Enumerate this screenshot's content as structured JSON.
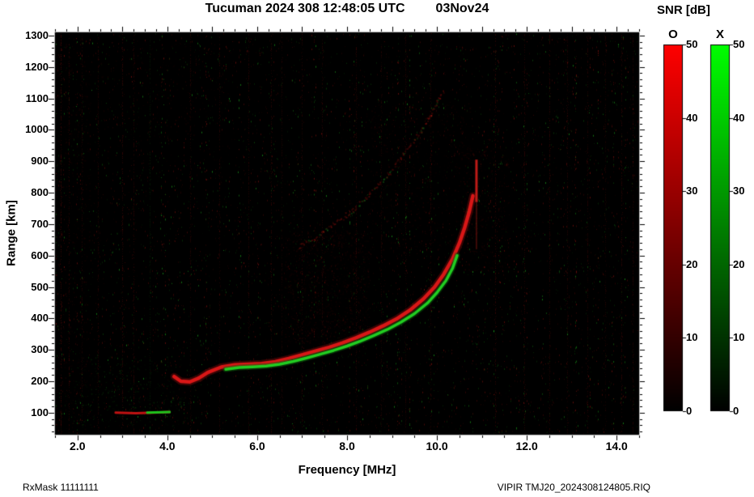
{
  "header": {
    "title": "Tucuman 2024 308 12:48:05 UTC",
    "date": "03Nov24"
  },
  "axes": {
    "x_label": "Frequency [MHz]",
    "y_label": "Range [km]",
    "x_ticks": [
      2,
      4,
      6,
      8,
      10,
      12,
      14
    ],
    "x_tick_labels": [
      "2.0",
      "4.0",
      "6.0",
      "8.0",
      "10.0",
      "12.0",
      "14.0"
    ],
    "y_ticks": [
      1300,
      1200,
      1100,
      1000,
      900,
      800,
      700,
      600,
      500,
      400,
      300,
      200,
      100
    ],
    "y_tick_labels": [
      "1300",
      "1200",
      "1100",
      "1000",
      "900",
      "800",
      "700",
      "600",
      "500",
      "400",
      "300",
      "200",
      "100"
    ]
  },
  "colorbar": {
    "title": "SNR [dB]",
    "bars": [
      {
        "label": "O",
        "color": "#ff0000"
      },
      {
        "label": "X",
        "color": "#00ff00"
      }
    ],
    "tick_values": [
      50,
      40,
      30,
      20,
      10,
      0
    ],
    "ticks": [
      "50",
      "40",
      "30",
      "20",
      "10",
      "0"
    ]
  },
  "footer": {
    "left": "RxMask 11111111",
    "right": "VIPIR  TMJ20_2024308124805.RIQ"
  },
  "chart_data": {
    "type": "heatmap",
    "description": "VIPIR ionogram: echo SNR versus sounding frequency and virtual range. O-mode echoes red, X-mode echoes green, on black background with RFI noise.",
    "station": "Tucuman",
    "xlim": [
      1.5,
      14.5
    ],
    "ylim": [
      30,
      1310
    ],
    "snr_range": [
      0,
      50
    ],
    "noise": {
      "red_fraction": 0.62
    },
    "traces": {
      "e_layer_o": {
        "mode": "O",
        "color": "#c01212",
        "points": [
          [
            2.85,
            100
          ],
          [
            3.3,
            98
          ],
          [
            3.7,
            100
          ],
          [
            4.05,
            102
          ]
        ]
      },
      "e_layer_x": {
        "mode": "X",
        "color": "#1dc41d",
        "points": [
          [
            3.55,
            100
          ],
          [
            4.05,
            102
          ]
        ]
      },
      "f_layer_o": {
        "mode": "O",
        "color": "#d81717",
        "points": [
          [
            4.15,
            215
          ],
          [
            4.3,
            200
          ],
          [
            4.5,
            198
          ],
          [
            4.7,
            210
          ],
          [
            4.9,
            228
          ],
          [
            5.2,
            245
          ],
          [
            5.5,
            252
          ],
          [
            5.8,
            254
          ],
          [
            6.1,
            256
          ],
          [
            6.4,
            262
          ],
          [
            6.7,
            272
          ],
          [
            7.0,
            284
          ],
          [
            7.3,
            296
          ],
          [
            7.6,
            308
          ],
          [
            7.9,
            322
          ],
          [
            8.2,
            338
          ],
          [
            8.5,
            356
          ],
          [
            8.8,
            376
          ],
          [
            9.1,
            398
          ],
          [
            9.4,
            426
          ],
          [
            9.7,
            462
          ],
          [
            9.95,
            500
          ],
          [
            10.15,
            540
          ],
          [
            10.35,
            590
          ],
          [
            10.5,
            640
          ],
          [
            10.62,
            690
          ],
          [
            10.72,
            740
          ],
          [
            10.8,
            790
          ]
        ]
      },
      "f_layer_x": {
        "mode": "X",
        "color": "#22cc22",
        "points": [
          [
            5.3,
            238
          ],
          [
            5.6,
            244
          ],
          [
            5.9,
            246
          ],
          [
            6.2,
            248
          ],
          [
            6.5,
            254
          ],
          [
            6.8,
            263
          ],
          [
            7.1,
            274
          ],
          [
            7.4,
            286
          ],
          [
            7.7,
            298
          ],
          [
            8.0,
            312
          ],
          [
            8.3,
            328
          ],
          [
            8.6,
            346
          ],
          [
            8.9,
            365
          ],
          [
            9.2,
            388
          ],
          [
            9.5,
            415
          ],
          [
            9.8,
            450
          ],
          [
            10.0,
            482
          ],
          [
            10.2,
            520
          ],
          [
            10.35,
            560
          ],
          [
            10.45,
            600
          ]
        ]
      },
      "second_hop": {
        "mode": "O",
        "color": "#8b1010",
        "points": [
          [
            6.9,
            630
          ],
          [
            7.3,
            660
          ],
          [
            7.7,
            700
          ],
          [
            8.1,
            745
          ],
          [
            8.5,
            800
          ],
          [
            8.9,
            860
          ],
          [
            9.2,
            915
          ],
          [
            9.5,
            970
          ],
          [
            9.8,
            1035
          ],
          [
            10.0,
            1090
          ],
          [
            10.15,
            1130
          ]
        ]
      },
      "spread": {
        "f": 10.88,
        "bright_range": [
          770,
          905
        ],
        "faint_range": [
          620,
          770
        ]
      }
    },
    "rfi_lines": [
      {
        "f": 1.62,
        "a": 0.35,
        "c": "r"
      },
      {
        "f": 1.8,
        "a": 0.25,
        "c": "r"
      },
      {
        "f": 2.1,
        "a": 0.18,
        "c": "r"
      },
      {
        "f": 2.45,
        "a": 0.22,
        "c": "r"
      },
      {
        "f": 3.0,
        "a": 0.3,
        "c": "r"
      },
      {
        "f": 3.25,
        "a": 0.22,
        "c": "r"
      },
      {
        "f": 3.6,
        "a": 0.15,
        "c": "g"
      },
      {
        "f": 4.5,
        "a": 0.22,
        "c": "r"
      },
      {
        "f": 5.15,
        "a": 0.2,
        "c": "r"
      },
      {
        "f": 5.8,
        "a": 0.22,
        "c": "r"
      },
      {
        "f": 6.3,
        "a": 0.25,
        "c": "r"
      },
      {
        "f": 6.55,
        "a": 0.18,
        "c": "r"
      },
      {
        "f": 7.0,
        "a": 0.22,
        "c": "r"
      },
      {
        "f": 7.45,
        "a": 0.2,
        "c": "r"
      },
      {
        "f": 8.2,
        "a": 0.22,
        "c": "r"
      },
      {
        "f": 8.75,
        "a": 0.18,
        "c": "r"
      },
      {
        "f": 9.3,
        "a": 0.2,
        "c": "r"
      },
      {
        "f": 9.85,
        "a": 0.18,
        "c": "r"
      },
      {
        "f": 11.3,
        "a": 0.28,
        "c": "r"
      },
      {
        "f": 11.95,
        "a": 0.22,
        "c": "r"
      },
      {
        "f": 12.5,
        "a": 0.25,
        "c": "r"
      },
      {
        "f": 12.9,
        "a": 0.18,
        "c": "r"
      },
      {
        "f": 13.35,
        "a": 0.22,
        "c": "r"
      },
      {
        "f": 13.75,
        "a": 0.18,
        "c": "r"
      },
      {
        "f": 14.1,
        "a": 0.25,
        "c": "r"
      },
      {
        "f": 14.35,
        "a": 0.2,
        "c": "r"
      }
    ],
    "clouds": [
      {
        "f": [
          6.6,
          8.5
        ],
        "r": [
          320,
          680
        ],
        "c": "r",
        "n": 1100,
        "a": 0.1
      },
      {
        "f": [
          8.5,
          10.8
        ],
        "r": [
          620,
          1080
        ],
        "c": "r",
        "n": 700,
        "a": 0.08
      },
      {
        "f": [
          1.9,
          4.4
        ],
        "r": [
          50,
          280
        ],
        "c": "g",
        "n": 320,
        "a": 0.12
      },
      {
        "f": [
          1.5,
          2.3
        ],
        "r": [
          40,
          1300
        ],
        "c": "r",
        "n": 600,
        "a": 0.08
      },
      {
        "f": [
          10.6,
          11.6
        ],
        "r": [
          550,
          950
        ],
        "c": "r",
        "n": 400,
        "a": 0.1
      },
      {
        "f": [
          2.5,
          5.5
        ],
        "r": [
          900,
          1290
        ],
        "c": "r",
        "n": 250,
        "a": 0.07
      }
    ]
  }
}
